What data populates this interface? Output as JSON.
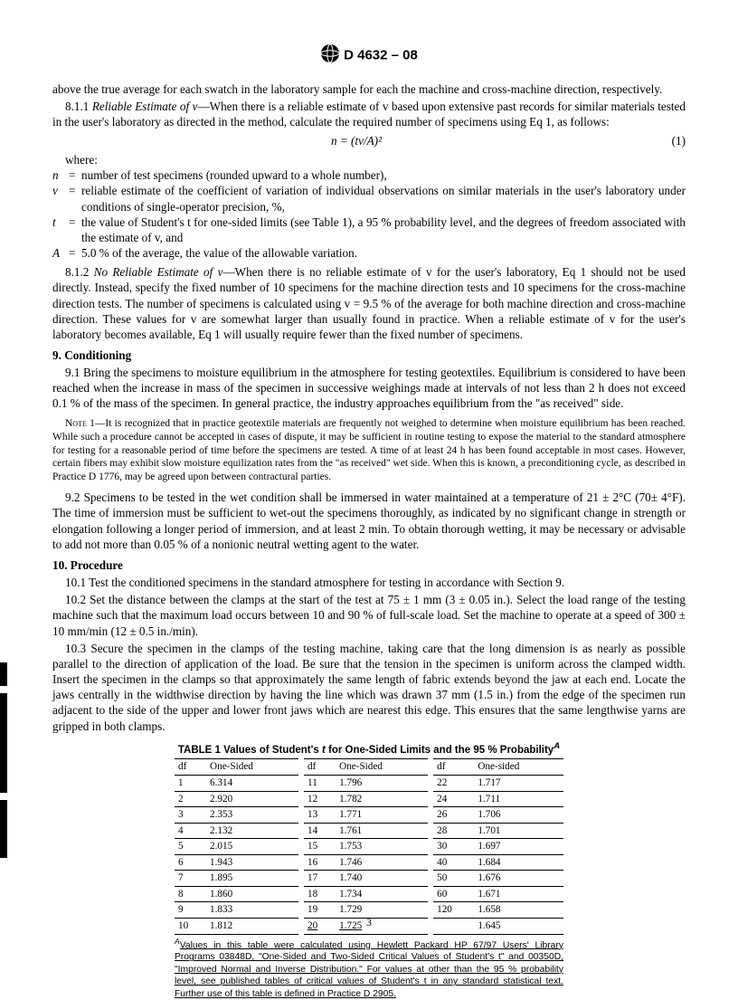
{
  "doc_header": "D 4632 – 08",
  "p1": "above the true average for each swatch in the laboratory sample for each the machine and cross-machine direction, respectively.",
  "p2_lead": "8.1.1 ",
  "p2_ital": "Reliable Estimate of v",
  "p2_rest": "—When there is a reliable estimate of v based upon extensive past records for similar materials tested in the user's laboratory as directed in the method, calculate the required number of specimens using Eq 1, as follows:",
  "equation": "n = (tv/A)²",
  "eq_number": "(1)",
  "where_label": "where:",
  "where": [
    {
      "sym": "n",
      "def": "number of test specimens (rounded upward to a whole number),"
    },
    {
      "sym": "v",
      "def": "reliable estimate of the coefficient of variation of individual observations on similar materials in the user's laboratory under conditions of single-operator precision, %,"
    },
    {
      "sym": "t",
      "def": "the value of Student's t for one-sided limits (see Table 1), a 95 % probability level, and the degrees of freedom associated with the estimate of v, and"
    },
    {
      "sym": "A",
      "def": "5.0 % of the average, the value of the allowable variation."
    }
  ],
  "p3_lead": "8.1.2 ",
  "p3_ital": "No Reliable Estimate of v",
  "p3_rest": "—When there is no reliable estimate of v for the user's laboratory, Eq 1 should not be used directly. Instead, specify the fixed number of 10 specimens for the machine direction tests and 10 specimens for the cross-machine direction tests. The number of specimens is calculated using v = 9.5 % of the average for both machine direction and cross-machine direction. These values for v are somewhat larger than usually found in practice. When a reliable estimate of v for the user's laboratory becomes available, Eq 1 will usually require fewer than the fixed number of specimens.",
  "h9": "9.  Conditioning",
  "p9_1": "9.1 Bring the specimens to moisture equilibrium in the atmosphere for testing geotextiles. Equilibrium is considered to have been reached when the increase in mass of the specimen in successive weighings made at intervals of not less than 2 h does not exceed 0.1 % of the mass of the specimen. In general practice, the industry approaches equilibrium from the \"as received\" side.",
  "note1_label": "Note 1—",
  "note1_body": "It is recognized that in practice geotextile materials are frequently not weighed to determine when moisture equilibrium has been reached. While such a procedure cannot be accepted in cases of dispute, it may be sufficient in routine testing to expose the material to the standard atmosphere for testing for a reasonable period of time before the specimens are tested. A time of at least 24 h has been found acceptable in most cases. However, certain fibers may exhibit slow moisture equilization rates from the \"as received\" wet side. When this is known, a preconditioning cycle, as described in Practice D 1776, may be agreed upon between contractural parties.",
  "p9_2": "9.2 Specimens to be tested in the wet condition shall be immersed in water maintained at a temperature of 21 ± 2°C (70± 4°F). The time of immersion must be sufficient to wet-out the specimens thoroughly, as indicated by no significant change in strength or elongation following a longer period of immersion, and at least 2 min. To obtain thorough wetting, it may be necessary or advisable to add not more than 0.05 % of a nonionic neutral wetting agent to the water.",
  "h10": "10.  Procedure",
  "p10_1": "10.1 Test the conditioned specimens in the standard atmosphere for testing in accordance with Section 9.",
  "p10_2": "10.2 Set the distance between the clamps at the start of the test at 75 ± 1 mm (3 ± 0.05 in.). Select the load range of the testing machine such that the maximum load occurs between 10 and 90 % of full-scale load. Set the machine to operate at a speed of 300 ± 10 mm/min (12 ± 0.5 in./min).",
  "p10_3": "10.3 Secure the specimen in the clamps of the testing machine, taking care that the long dimension is as nearly as possible parallel to the direction of application of the load. Be sure that the tension in the specimen is uniform across the clamped width. Insert the specimen in the clamps so that approximately the same length of fabric extends beyond the jaw at each end. Locate the jaws centrally in the widthwise direction by having the line which was drawn 37 mm (1.5 in.) from the edge of the specimen run adjacent to the side of the upper and lower front jaws which are nearest this edge. This ensures that the same lengthwise yarns are gripped in both clamps.",
  "table_title_1": "TABLE 1  Values of Student's ",
  "table_title_ital": "t",
  "table_title_2": " for One-Sided Limits and the 95 % Probability",
  "table_title_sup": "A",
  "columns": {
    "df": "df",
    "one_sided": "One-Sided",
    "one_sided_lc": "One-sided"
  },
  "tbl": {
    "block1": [
      {
        "df": "1",
        "v": "6.314"
      },
      {
        "df": "2",
        "v": "2.920"
      },
      {
        "df": "3",
        "v": "2.353"
      },
      {
        "df": "4",
        "v": "2.132"
      },
      {
        "df": "5",
        "v": "2.015"
      },
      {
        "df": "6",
        "v": "1.943"
      },
      {
        "df": "7",
        "v": "1.895"
      },
      {
        "df": "8",
        "v": "1.860"
      },
      {
        "df": "9",
        "v": "1.833"
      },
      {
        "df": "10",
        "v": "1.812"
      }
    ],
    "block2": [
      {
        "df": "11",
        "v": "1.796"
      },
      {
        "df": "12",
        "v": "1.782"
      },
      {
        "df": "13",
        "v": "1.771"
      },
      {
        "df": "14",
        "v": "1.761"
      },
      {
        "df": "15",
        "v": "1.753"
      },
      {
        "df": "16",
        "v": "1.746"
      },
      {
        "df": "17",
        "v": "1.740"
      },
      {
        "df": "18",
        "v": "1.734"
      },
      {
        "df": "19",
        "v": "1.729"
      },
      {
        "df": "20",
        "v": "1.725"
      }
    ],
    "block3": [
      {
        "df": "22",
        "v": "1.717"
      },
      {
        "df": "24",
        "v": "1.711"
      },
      {
        "df": "26",
        "v": "1.706"
      },
      {
        "df": "28",
        "v": "1.701"
      },
      {
        "df": "30",
        "v": "1.697"
      },
      {
        "df": "40",
        "v": "1.684"
      },
      {
        "df": "50",
        "v": "1.676"
      },
      {
        "df": "60",
        "v": "1.671"
      },
      {
        "df": "120",
        "v": "1.658"
      },
      {
        "df": "",
        "v": "1.645"
      }
    ]
  },
  "footnote_sup": "A",
  "footnote": "Values in this table were calculated using Hewlett Packard HP 67/97 Users' Library Programs 03848D, \"One-Sided and Two-Sided Critical Values of Student's t\" and 00350D, \"Improved Normal and Inverse Distribution.\" For values at other than the 95 % probability level, see published tables of critical values of Student's t in any standard statistical text. Further use of this table is defined in Practice D 2905.",
  "page_number": "3",
  "side_bar_heights": [
    26,
    110,
    64
  ]
}
